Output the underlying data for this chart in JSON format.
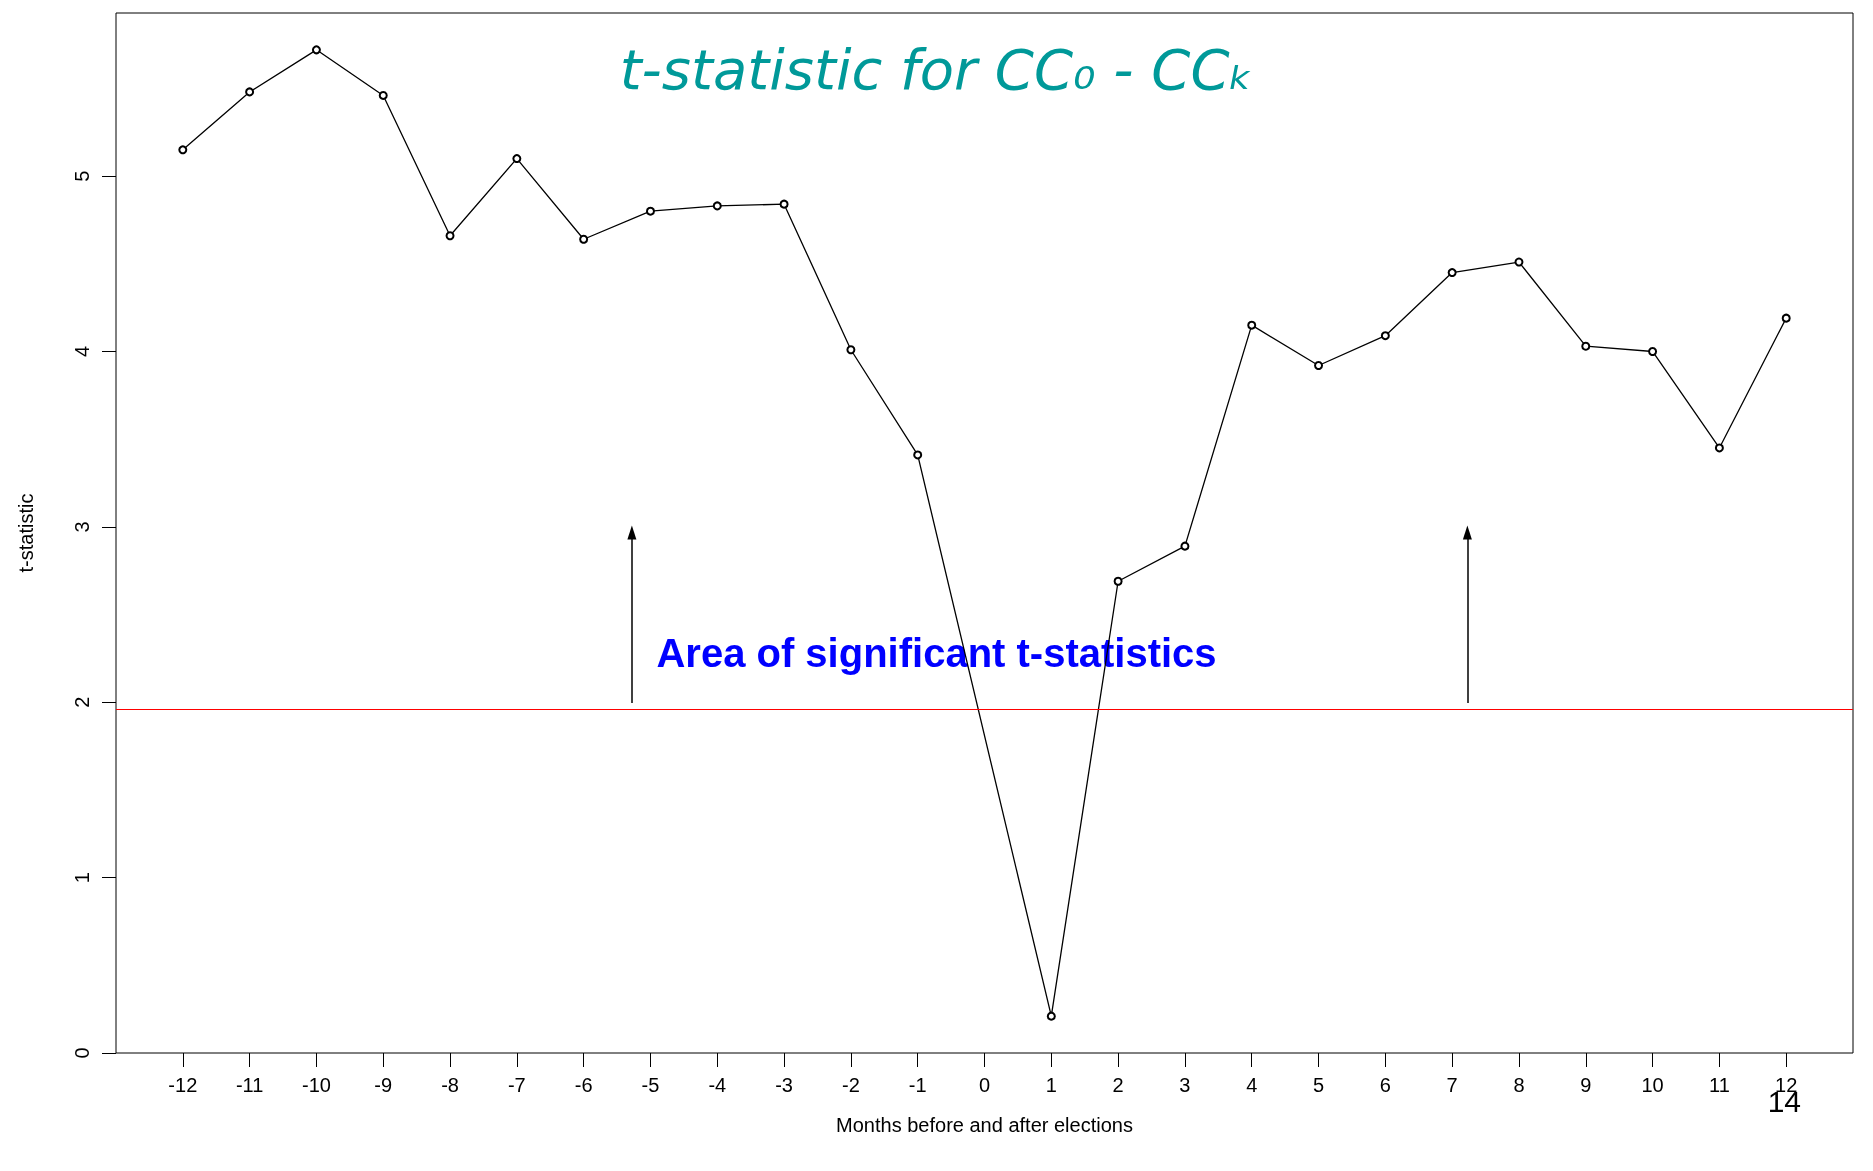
{
  "chart_data": {
    "type": "line",
    "title": "t-statistic for CC₀ - CCₖ",
    "xlabel": "Months before and after elections",
    "ylabel": "t-statistic",
    "x": [
      -12,
      -11,
      -10,
      -9,
      -8,
      -7,
      -6,
      -5,
      -4,
      -3,
      -2,
      -1,
      1,
      2,
      3,
      4,
      5,
      6,
      7,
      8,
      9,
      10,
      11,
      12
    ],
    "series": [
      {
        "color": "#000000",
        "values": [
          5.15,
          5.48,
          5.72,
          5.46,
          4.66,
          5.1,
          4.64,
          4.8,
          4.83,
          4.84,
          4.01,
          3.41,
          0.21,
          2.69,
          2.89,
          4.15,
          3.92,
          4.09,
          4.45,
          4.51,
          4.03,
          4.0,
          3.45,
          4.19
        ]
      }
    ],
    "xlim": [
      -13,
      13
    ],
    "xticks": [
      -12,
      -11,
      -10,
      -9,
      -8,
      -7,
      -6,
      -5,
      -4,
      -3,
      -2,
      -1,
      0,
      1,
      2,
      3,
      4,
      5,
      6,
      7,
      8,
      9,
      10,
      11,
      12
    ],
    "ylim": [
      0,
      5.93
    ],
    "yticks": [
      0,
      1,
      2,
      3,
      4,
      5
    ],
    "ref_lines": [
      {
        "axis": "y",
        "value": 1.96,
        "color": "#ff0000"
      }
    ],
    "annotations": [
      "Area of significant t-statistics",
      "14"
    ],
    "grid": false,
    "marker": "circle",
    "line_style": "solid"
  }
}
